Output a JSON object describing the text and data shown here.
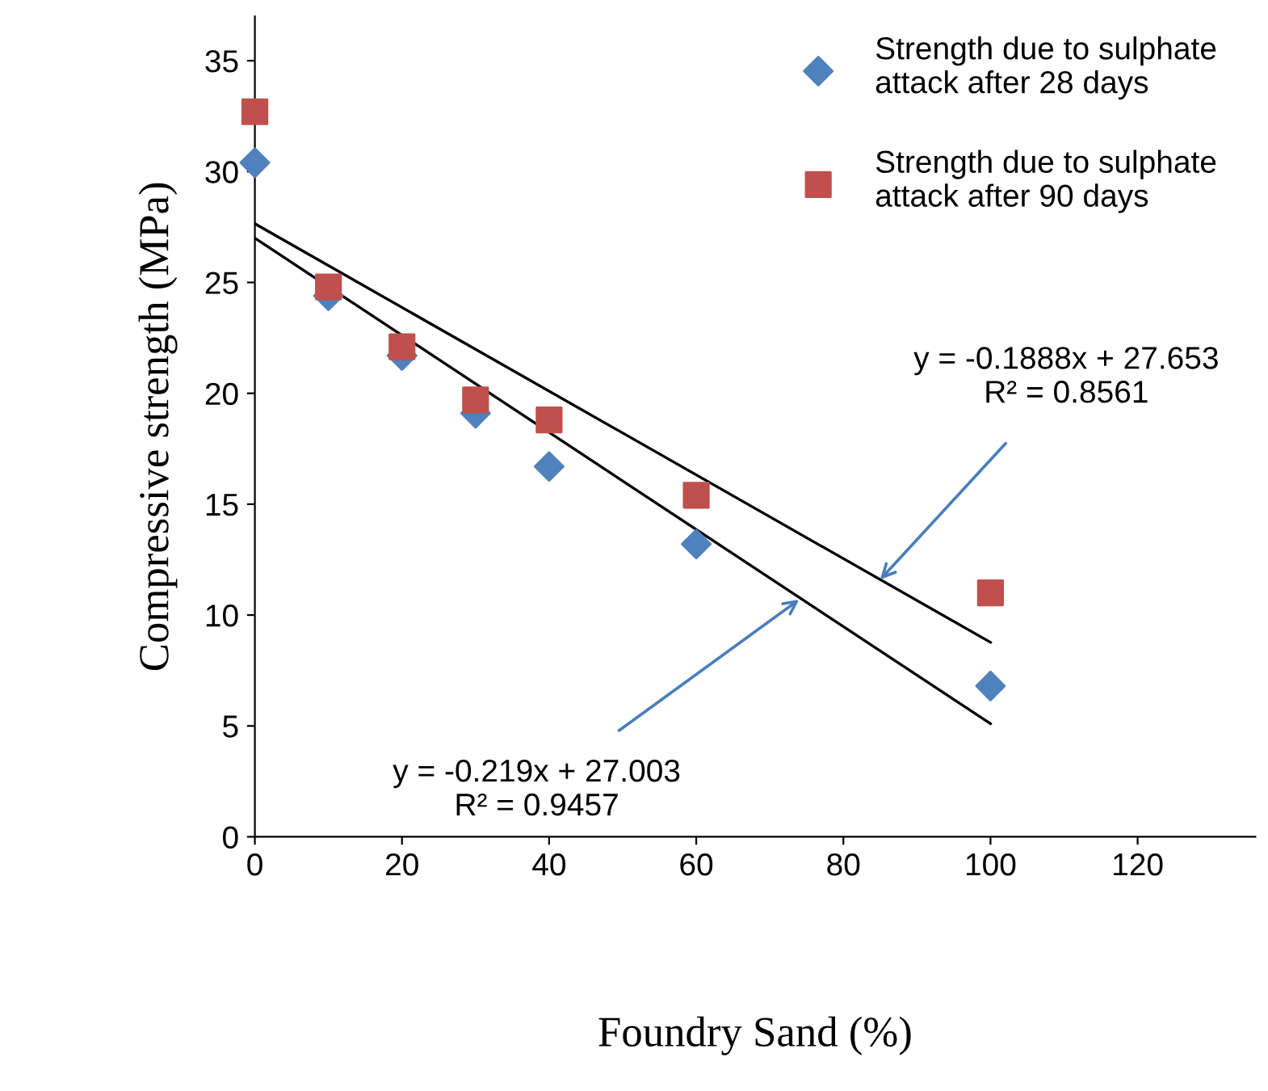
{
  "chart_data": {
    "type": "scatter",
    "xlabel": "Foundry Sand (%)",
    "ylabel": "Compressive strength (MPa)",
    "xlim": [
      0,
      136
    ],
    "xticks": [
      0,
      20,
      40,
      60,
      80,
      100,
      120
    ],
    "ylim": [
      0,
      37
    ],
    "yticks": [
      0,
      5,
      10,
      15,
      20,
      25,
      30,
      35
    ],
    "grid": false,
    "legend": "top right",
    "series": [
      {
        "name": "Strength due to sulphate attack after 28 days",
        "color": "#4f81bd",
        "marker": "diamond",
        "x": [
          0,
          10,
          20,
          30,
          40,
          60,
          100
        ],
        "values": [
          30.4,
          24.4,
          21.7,
          19.1,
          16.7,
          13.2,
          6.8
        ]
      },
      {
        "name": "Strength due to sulphate attack after 90 days",
        "color": "#c0504d",
        "marker": "square",
        "x": [
          0,
          10,
          20,
          30,
          40,
          60,
          100
        ],
        "values": [
          32.7,
          24.8,
          22.1,
          19.7,
          18.8,
          15.4,
          11.0
        ]
      },
      {
        "type": "line",
        "color": "#000000",
        "marker": "none",
        "x": [
          0,
          100
        ],
        "values": [
          27.0,
          5.1
        ]
      },
      {
        "type": "line",
        "color": "#000000",
        "marker": "none",
        "x": [
          0,
          100
        ],
        "values": [
          27.65,
          8.77
        ]
      }
    ],
    "annotations": [
      {
        "text": "y = -0.219x + 27.003\nR² = 0.9457",
        "x": 74,
        "y": 10.7
      },
      {
        "text": "y = -0.1888x + 27.653\nR² = 0.8561",
        "x": 85,
        "y": 11.6
      }
    ]
  }
}
